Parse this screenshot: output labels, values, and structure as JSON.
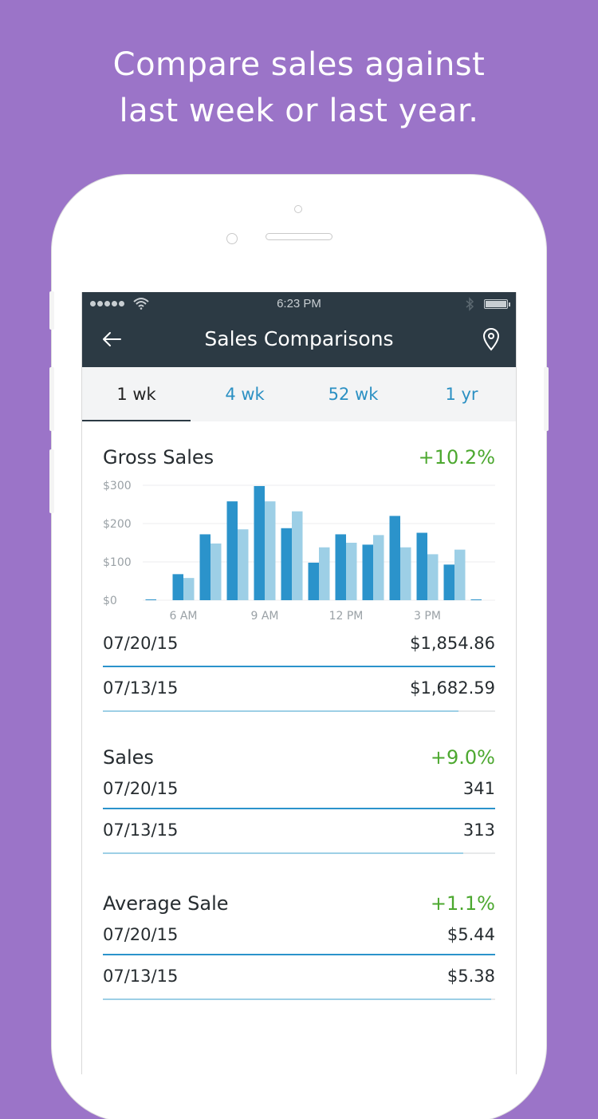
{
  "headline": {
    "line1": "Compare sales against",
    "line2": "last week or last year."
  },
  "statusbar": {
    "time": "6:23 PM"
  },
  "navbar": {
    "title": "Sales Comparisons"
  },
  "tabs": [
    {
      "label": "1 wk",
      "active": true
    },
    {
      "label": "4 wk",
      "active": false
    },
    {
      "label": "52 wk",
      "active": false
    },
    {
      "label": "1 yr",
      "active": false
    }
  ],
  "colors": {
    "current": "#2b93cb",
    "previous": "#9dcfe6",
    "positive": "#4ca82f",
    "nav": "#2c3a44"
  },
  "gross_sales": {
    "title": "Gross Sales",
    "change": "+10.2%",
    "rows": [
      {
        "date": "07/20/15",
        "value": "$1,854.86",
        "fraction": 1.0
      },
      {
        "date": "07/13/15",
        "value": "$1,682.59",
        "fraction": 0.907
      }
    ]
  },
  "chart_data": {
    "type": "bar",
    "y_ticks": [
      "$300",
      "$200",
      "$100",
      "$0"
    ],
    "ylim": [
      0,
      300
    ],
    "x_tick_labels": [
      "6 AM",
      "9 AM",
      "12 PM",
      "3 PM"
    ],
    "series": [
      {
        "values": [
          2,
          68,
          172,
          258,
          298,
          188,
          98,
          172,
          145,
          220,
          176,
          93,
          2
        ]
      },
      {
        "values": [
          0,
          58,
          148,
          185,
          258,
          232,
          138,
          150,
          170,
          138,
          120,
          132,
          0
        ]
      }
    ]
  },
  "sales": {
    "title": "Sales",
    "change": "+9.0%",
    "rows": [
      {
        "date": "07/20/15",
        "value": "341",
        "fraction": 1.0
      },
      {
        "date": "07/13/15",
        "value": "313",
        "fraction": 0.918
      }
    ]
  },
  "average_sale": {
    "title": "Average Sale",
    "change": "+1.1%",
    "rows": [
      {
        "date": "07/20/15",
        "value": "$5.44",
        "fraction": 1.0
      },
      {
        "date": "07/13/15",
        "value": "$5.38",
        "fraction": 0.989
      }
    ]
  }
}
